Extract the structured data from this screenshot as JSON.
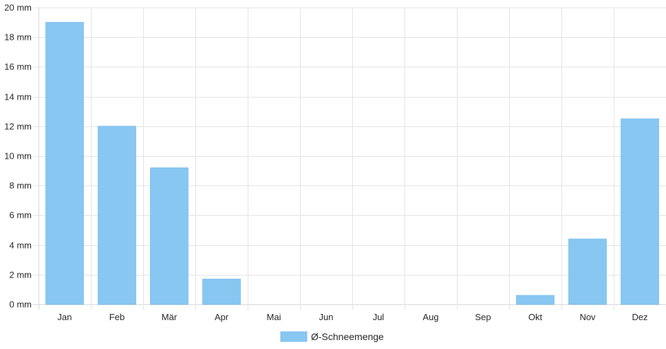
{
  "chart_data": {
    "type": "bar",
    "categories": [
      "Jan",
      "Feb",
      "Mär",
      "Apr",
      "Mai",
      "Jun",
      "Jul",
      "Aug",
      "Sep",
      "Okt",
      "Nov",
      "Dez"
    ],
    "series": [
      {
        "name": "Ø-Schneemenge",
        "values": [
          19.0,
          12.0,
          9.2,
          1.7,
          0,
          0,
          0,
          0,
          0,
          0.6,
          4.4,
          12.5
        ]
      }
    ],
    "ylim": [
      0,
      20
    ],
    "yticks": [
      "0 mm",
      "2 mm",
      "4 mm",
      "6 mm",
      "8 mm",
      "10 mm",
      "12 mm",
      "14 mm",
      "16 mm",
      "18 mm",
      "20 mm"
    ],
    "grid": true,
    "legend_position": "bottom",
    "colors": {
      "bar": "#88c7f2",
      "bar_border": "#79bdee",
      "grid": "#e3e3e3",
      "axis": "#d6d6d6"
    }
  }
}
